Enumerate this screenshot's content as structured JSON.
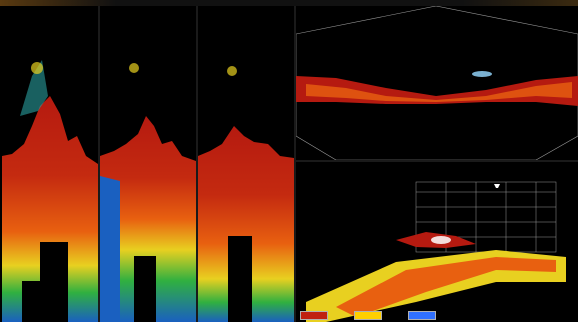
{
  "layout": {
    "vertical_panes": 3,
    "right_top": "sector-scan",
    "right_bottom": "3d-seabed-view"
  },
  "colors": {
    "background": "#000000",
    "echo_red": "#b51a10",
    "echo_orange": "#e86010",
    "echo_yellow": "#e8d020",
    "echo_green": "#30b040",
    "echo_blue": "#1a60c0",
    "grid": "#9a9a9a"
  },
  "icons": {
    "boat": "boat-icon"
  },
  "legend_colors": [
    "#c02010",
    "#ffd000",
    "#3070ff"
  ]
}
